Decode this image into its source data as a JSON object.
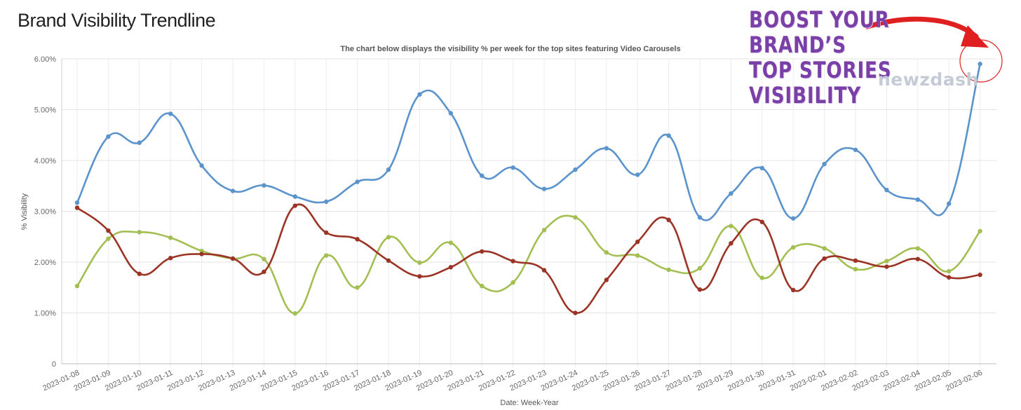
{
  "page": {
    "title": "Brand Visibility Trendline"
  },
  "promo": {
    "lines": [
      "BOOST YOUR",
      "BRAND’S",
      "TOP STORIES",
      "VISIBILITY"
    ],
    "logo_text": "newzdash",
    "promo_color": "#7b3fa8",
    "arrow_color": "#e02020"
  },
  "chart_data": {
    "type": "line",
    "title": "The chart below displays the visibility % per week for the top sites featuring Video Carousels",
    "xlabel": "Date: Week-Year",
    "ylabel": "% Visibility",
    "ylim": [
      0,
      6
    ],
    "yticks": [
      0,
      1,
      2,
      3,
      4,
      5,
      6
    ],
    "ytick_labels": [
      "0",
      "1.00%",
      "2.00%",
      "3.00%",
      "4.00%",
      "5.00%",
      "6.00%"
    ],
    "grid": true,
    "smooth": true,
    "categories": [
      "2023-01-08",
      "2023-01-09",
      "2023-01-10",
      "2023-01-11",
      "2023-01-12",
      "2023-01-13",
      "2023-01-14",
      "2023-01-15",
      "2023-01-16",
      "2023-01-17",
      "2023-01-18",
      "2023-01-19",
      "2023-01-20",
      "2023-01-21",
      "2023-01-22",
      "2023-01-23",
      "2023-01-24",
      "2023-01-25",
      "2023-01-26",
      "2023-01-27",
      "2023-01-28",
      "2023-01-29",
      "2023-01-30",
      "2023-01-31",
      "2023-02-01",
      "2023-02-02",
      "2023-02-03",
      "2023-02-04",
      "2023-02-05",
      "2023-02-06"
    ],
    "series": [
      {
        "color": "#5b93cc",
        "values": [
          3.17,
          4.47,
          4.35,
          4.92,
          3.9,
          3.4,
          3.51,
          3.29,
          3.19,
          3.58,
          3.82,
          5.3,
          4.93,
          3.7,
          3.86,
          3.44,
          3.82,
          4.24,
          3.72,
          4.49,
          2.88,
          3.35,
          3.85,
          2.86,
          3.93,
          4.21,
          3.42,
          3.23,
          3.15,
          5.9
        ]
      },
      {
        "color": "#a3bf52",
        "values": [
          1.53,
          2.46,
          2.59,
          2.48,
          2.22,
          2.07,
          2.06,
          0.99,
          2.13,
          1.5,
          2.49,
          1.99,
          2.38,
          1.53,
          1.6,
          2.63,
          2.88,
          2.19,
          2.13,
          1.85,
          1.88,
          2.71,
          1.69,
          2.29,
          2.27,
          1.86,
          2.02,
          2.27,
          1.82,
          2.61
        ]
      },
      {
        "color": "#9c3426",
        "values": [
          3.07,
          2.62,
          1.77,
          2.08,
          2.16,
          2.07,
          1.81,
          3.11,
          2.58,
          2.45,
          2.03,
          1.72,
          1.9,
          2.21,
          2.02,
          1.84,
          1.0,
          1.65,
          2.4,
          2.83,
          1.46,
          2.37,
          2.79,
          1.45,
          2.07,
          2.03,
          1.91,
          2.06,
          1.7,
          1.75
        ]
      }
    ]
  }
}
